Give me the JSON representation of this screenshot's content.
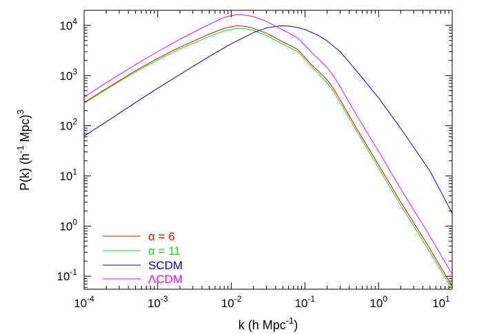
{
  "chart_data": {
    "type": "line",
    "xscale": "log",
    "yscale": "log",
    "xlim": [
      0.0001,
      10
    ],
    "ylim": [
      0.055,
      20000
    ],
    "xlabel": {
      "main": "k (h Mpc",
      "sup": "-1",
      "tail": ")"
    },
    "ylabel": {
      "main": "P(k) (h",
      "sup1": "-1",
      "mid": " Mpc)",
      "sup2": "3"
    },
    "x_ticks": [
      {
        "value": 0.0001,
        "base": "10",
        "exp": "-4"
      },
      {
        "value": 0.001,
        "base": "10",
        "exp": "-3"
      },
      {
        "value": 0.01,
        "base": "10",
        "exp": "-2"
      },
      {
        "value": 0.1,
        "base": "10",
        "exp": "-1"
      },
      {
        "value": 1,
        "base": "10",
        "exp": "0"
      },
      {
        "value": 10,
        "base": "10",
        "exp": "1"
      }
    ],
    "y_ticks": [
      {
        "value": 0.1,
        "base": "10",
        "exp": "-1"
      },
      {
        "value": 1,
        "base": "10",
        "exp": "0"
      },
      {
        "value": 10,
        "base": "10",
        "exp": "1"
      },
      {
        "value": 100,
        "base": "10",
        "exp": "2"
      },
      {
        "value": 1000,
        "base": "10",
        "exp": "3"
      },
      {
        "value": 10000,
        "base": "10",
        "exp": "4"
      }
    ],
    "grid": false,
    "legend_position": "bottom-left",
    "series": [
      {
        "name": "α = 6",
        "color": "#ff0000",
        "x": [
          0.0001,
          0.0002,
          0.0005,
          0.001,
          0.002,
          0.005,
          0.008,
          0.012,
          0.016,
          0.02,
          0.03,
          0.045,
          0.06,
          0.08,
          0.1,
          0.12,
          0.15,
          0.2,
          0.25,
          0.3,
          0.5,
          1,
          2,
          5,
          10
        ],
        "y": [
          290,
          550,
          1250,
          2200,
          3700,
          6700,
          8800,
          9900,
          9500,
          8700,
          7000,
          5100,
          4100,
          3300,
          2300,
          1700,
          1250,
          820,
          520,
          330,
          90,
          16.5,
          3.0,
          0.35,
          0.063
        ]
      },
      {
        "name": "α = 11",
        "color": "#00ee00",
        "x": [
          0.0001,
          0.0002,
          0.0005,
          0.001,
          0.002,
          0.005,
          0.008,
          0.012,
          0.016,
          0.02,
          0.03,
          0.045,
          0.06,
          0.08,
          0.1,
          0.12,
          0.15,
          0.2,
          0.25,
          0.3,
          0.5,
          1,
          2,
          5,
          10
        ],
        "y": [
          280,
          530,
          1180,
          2050,
          3400,
          6000,
          7800,
          8700,
          8600,
          7900,
          6300,
          4600,
          3700,
          3000,
          2100,
          1550,
          1120,
          720,
          460,
          290,
          80,
          14.5,
          2.6,
          0.3,
          0.055
        ]
      },
      {
        "name": "SCDM",
        "color": "#0000dd",
        "x": [
          0.0001,
          0.0002,
          0.0005,
          0.001,
          0.002,
          0.005,
          0.01,
          0.02,
          0.03,
          0.045,
          0.06,
          0.08,
          0.1,
          0.15,
          0.2,
          0.3,
          0.5,
          1,
          2,
          5,
          10
        ],
        "y": [
          62,
          120,
          290,
          560,
          1050,
          2400,
          4300,
          7200,
          8900,
          9800,
          9700,
          9100,
          8300,
          6400,
          4900,
          3000,
          1250,
          360,
          88,
          12.5,
          1.8
        ]
      },
      {
        "name": "ΛCDM",
        "color": "#ff00ff",
        "x": [
          0.0001,
          0.0002,
          0.0005,
          0.001,
          0.002,
          0.005,
          0.008,
          0.012,
          0.016,
          0.02,
          0.03,
          0.045,
          0.06,
          0.08,
          0.1,
          0.12,
          0.15,
          0.2,
          0.25,
          0.3,
          0.5,
          1,
          2,
          5,
          10
        ],
        "y": [
          370,
          720,
          1650,
          3000,
          5300,
          10500,
          14500,
          16500,
          16000,
          15000,
          12000,
          8800,
          7100,
          5600,
          4000,
          3000,
          2200,
          1450,
          930,
          600,
          165,
          31,
          5.5,
          0.62,
          0.11
        ]
      }
    ]
  }
}
